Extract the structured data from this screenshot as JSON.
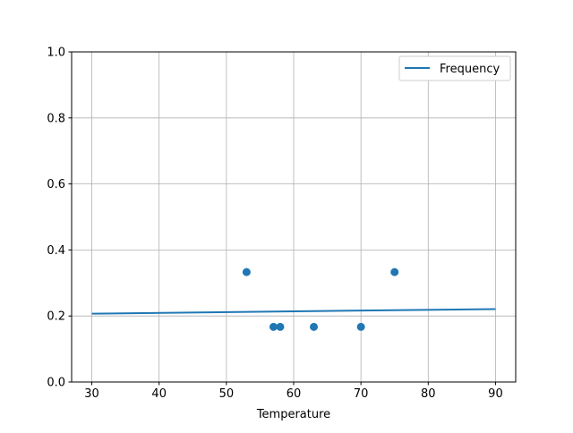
{
  "chart_data": {
    "type": "scatter",
    "title": "",
    "xlabel": "Temperature",
    "ylabel": "",
    "xlim": [
      27,
      93
    ],
    "ylim": [
      0,
      1.0
    ],
    "xticks": [
      30,
      40,
      50,
      60,
      70,
      80,
      90
    ],
    "yticks": [
      0.0,
      0.2,
      0.4,
      0.6,
      0.8,
      1.0
    ],
    "ytick_labels": [
      "0.0",
      "0.2",
      "0.4",
      "0.6",
      "0.8",
      "1.0"
    ],
    "grid": true,
    "legend": {
      "placement": "upper-right",
      "entries": [
        "Frequency"
      ]
    },
    "color": "#1f77b4",
    "scatter": {
      "x": [
        53,
        57,
        58,
        63,
        70,
        75
      ],
      "y": [
        0.333,
        0.167,
        0.167,
        0.167,
        0.167,
        0.333
      ]
    },
    "line": {
      "name": "Frequency",
      "x": [
        30,
        90
      ],
      "y": [
        0.207,
        0.221
      ]
    }
  }
}
